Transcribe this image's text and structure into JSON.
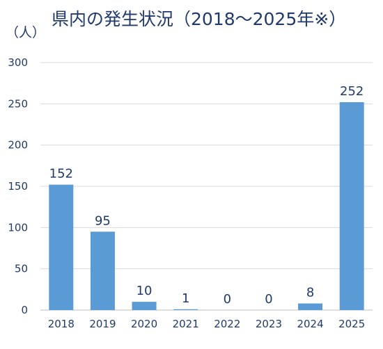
{
  "chart_data": {
    "type": "bar",
    "title": "県内の発生状況（2018〜2025年※）",
    "unit_label": "（人）",
    "categories": [
      "2018",
      "2019",
      "2020",
      "2021",
      "2022",
      "2023",
      "2024",
      "2025"
    ],
    "values": [
      152,
      95,
      10,
      1,
      0,
      0,
      8,
      252
    ],
    "data_labels": [
      "152",
      "95",
      "10",
      "1",
      "0",
      "0",
      "8",
      "252"
    ],
    "y_ticks": [
      0,
      50,
      100,
      150,
      200,
      250,
      300
    ],
    "ylim": [
      0,
      300
    ],
    "grid": true,
    "legend": "none",
    "colors": {
      "bar": "#5b9bd5",
      "text": "#1f3a6b",
      "grid": "#d9d9d9",
      "axis": "#bfbfbf"
    }
  }
}
